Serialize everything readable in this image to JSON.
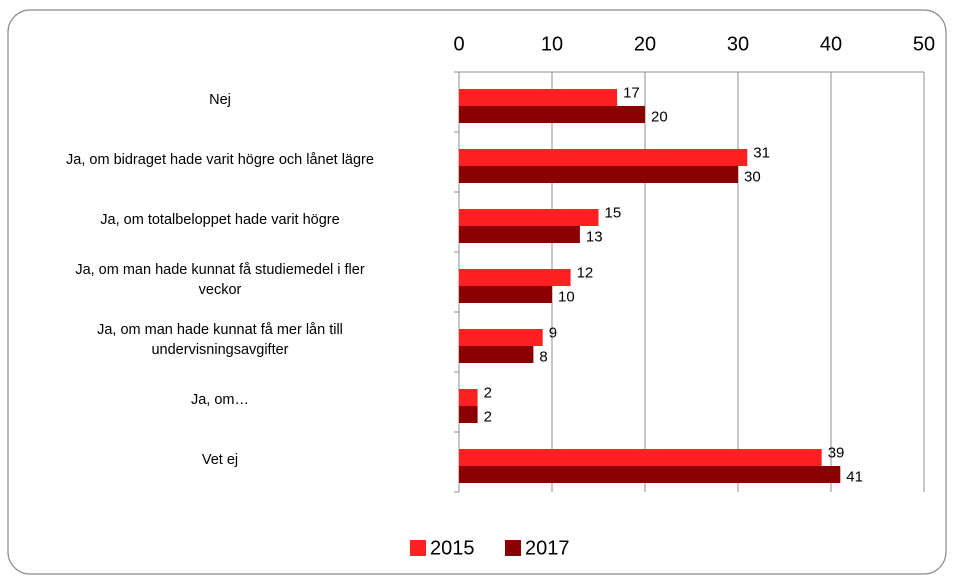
{
  "chart_data": {
    "type": "bar",
    "orientation": "horizontal",
    "categories": [
      "Nej",
      "Ja, om bidraget hade varit högre och lånet lägre",
      "Ja, om totalbeloppet hade varit högre",
      "Ja, om man hade kunnat få studiemedel i fler\nveckor",
      "Ja, om man hade kunnat få mer lån till\nundervisningsavgifter",
      "Ja, om…",
      "Vet ej"
    ],
    "series": [
      {
        "name": "2015",
        "color": "#ff2121",
        "values": [
          17,
          31,
          15,
          12,
          9,
          2,
          39
        ]
      },
      {
        "name": "2017",
        "color": "#8b0000",
        "values": [
          20,
          30,
          13,
          10,
          8,
          2,
          41
        ]
      }
    ],
    "xlim": [
      0,
      50
    ],
    "xticks": [
      0,
      10,
      20,
      30,
      40,
      50
    ],
    "grid": true,
    "legend": "bottom"
  }
}
